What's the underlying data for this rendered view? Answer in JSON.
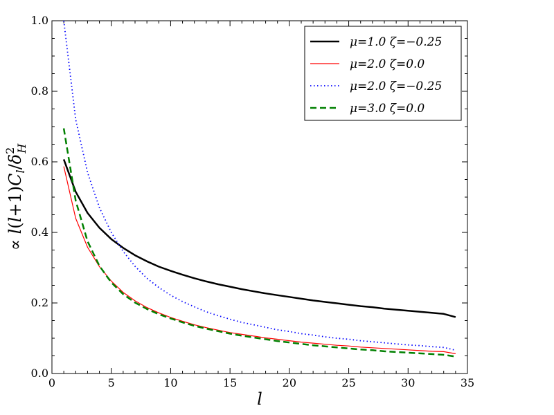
{
  "chart_data": {
    "type": "line",
    "title": "",
    "xlabel": "l",
    "ylabel": "∝ l(l+1)C_l/δ_H^2",
    "xlim": [
      0,
      35
    ],
    "ylim": [
      0.0,
      1.0
    ],
    "xticks": [
      "0",
      "5",
      "10",
      "15",
      "20",
      "25",
      "30",
      "35"
    ],
    "yticks": [
      "0.0",
      "0.2",
      "0.4",
      "0.6",
      "0.8",
      "1.0"
    ],
    "grid": false,
    "legend_position": "top-right",
    "x": [
      1,
      2,
      3,
      4,
      5,
      6,
      7,
      8,
      9,
      10,
      11,
      12,
      13,
      14,
      15,
      16,
      17,
      18,
      19,
      20,
      21,
      22,
      23,
      24,
      25,
      26,
      27,
      28,
      29,
      30,
      31,
      32,
      33,
      34
    ],
    "series": [
      {
        "name": "μ=1.0  ζ=−0.25",
        "color": "#000000",
        "style": "solid",
        "values": [
          0.607,
          0.515,
          0.455,
          0.413,
          0.381,
          0.356,
          0.335,
          0.318,
          0.303,
          0.291,
          0.28,
          0.27,
          0.261,
          0.253,
          0.246,
          0.239,
          0.233,
          0.227,
          0.222,
          0.217,
          0.212,
          0.207,
          0.203,
          0.199,
          0.195,
          0.191,
          0.188,
          0.184,
          0.181,
          0.178,
          0.175,
          0.172,
          0.169,
          0.16
        ]
      },
      {
        "name": "μ=2.0  ζ=0.0",
        "color": "#ff0000",
        "style": "solid",
        "values": [
          0.587,
          0.44,
          0.358,
          0.303,
          0.262,
          0.23,
          0.206,
          0.187,
          0.172,
          0.159,
          0.148,
          0.138,
          0.13,
          0.123,
          0.116,
          0.111,
          0.106,
          0.101,
          0.097,
          0.093,
          0.089,
          0.086,
          0.083,
          0.08,
          0.078,
          0.075,
          0.073,
          0.071,
          0.069,
          0.067,
          0.065,
          0.063,
          0.062,
          0.056
        ]
      },
      {
        "name": "μ=2.0  ζ=−0.25",
        "color": "#0000ff",
        "style": "dotted",
        "values": [
          1.0,
          0.72,
          0.57,
          0.47,
          0.4,
          0.346,
          0.304,
          0.27,
          0.244,
          0.222,
          0.204,
          0.189,
          0.175,
          0.164,
          0.154,
          0.145,
          0.138,
          0.131,
          0.124,
          0.119,
          0.113,
          0.109,
          0.104,
          0.1,
          0.097,
          0.093,
          0.09,
          0.087,
          0.084,
          0.081,
          0.079,
          0.076,
          0.074,
          0.066
        ]
      },
      {
        "name": "μ=3.0  ζ=0.0",
        "color": "#008000",
        "style": "dashed",
        "values": [
          0.695,
          0.49,
          0.375,
          0.305,
          0.258,
          0.225,
          0.201,
          0.183,
          0.168,
          0.156,
          0.145,
          0.135,
          0.127,
          0.12,
          0.113,
          0.107,
          0.102,
          0.097,
          0.092,
          0.088,
          0.084,
          0.08,
          0.077,
          0.074,
          0.071,
          0.068,
          0.066,
          0.063,
          0.061,
          0.059,
          0.057,
          0.055,
          0.053,
          0.048
        ]
      }
    ]
  }
}
